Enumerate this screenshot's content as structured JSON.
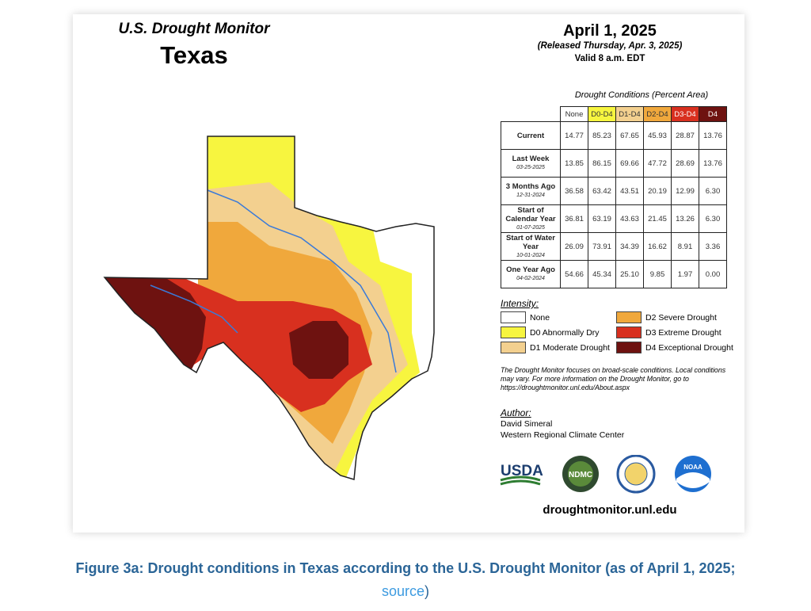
{
  "map": {
    "program_title": "U.S. Drought Monitor",
    "state": "Texas",
    "date": "April 1, 2025",
    "released": "(Released Thursday, Apr. 3, 2025)",
    "valid": "Valid 8 a.m. EDT",
    "colors": {
      "none": "#ffffff",
      "D0": "#f7f53f",
      "D1": "#f3d08f",
      "D2": "#f0a83c",
      "D3": "#d8301f",
      "D4": "#6e1210"
    }
  },
  "table": {
    "caption": "Drought Conditions (Percent Area)",
    "columns": [
      "None",
      "D0-D4",
      "D1-D4",
      "D2-D4",
      "D3-D4",
      "D4"
    ],
    "rows": [
      {
        "label": "Current",
        "date": "",
        "values": [
          "14.77",
          "85.23",
          "67.65",
          "45.93",
          "28.87",
          "13.76"
        ]
      },
      {
        "label": "Last Week",
        "date": "03-25-2025",
        "values": [
          "13.85",
          "86.15",
          "69.66",
          "47.72",
          "28.69",
          "13.76"
        ]
      },
      {
        "label": "3 Months Ago",
        "date": "12-31-2024",
        "values": [
          "36.58",
          "63.42",
          "43.51",
          "20.19",
          "12.99",
          "6.30"
        ]
      },
      {
        "label": "Start of Calendar Year",
        "date": "01-07-2025",
        "values": [
          "36.81",
          "63.19",
          "43.63",
          "21.45",
          "13.26",
          "6.30"
        ]
      },
      {
        "label": "Start of Water Year",
        "date": "10-01-2024",
        "values": [
          "26.09",
          "73.91",
          "34.39",
          "16.62",
          "8.91",
          "3.36"
        ]
      },
      {
        "label": "One Year Ago",
        "date": "04-02-2024",
        "values": [
          "54.66",
          "45.34",
          "25.10",
          "9.85",
          "1.97",
          "0.00"
        ]
      }
    ]
  },
  "legend": {
    "title": "Intensity:",
    "items": [
      {
        "label": "None",
        "color": "#ffffff"
      },
      {
        "label": "D2 Severe Drought",
        "color": "#f0a83c"
      },
      {
        "label": "D0 Abnormally Dry",
        "color": "#f7f53f"
      },
      {
        "label": "D3 Extreme Drought",
        "color": "#d8301f"
      },
      {
        "label": "D1 Moderate Drought",
        "color": "#f3d08f"
      },
      {
        "label": "D4 Exceptional Drought",
        "color": "#6e1210"
      }
    ]
  },
  "note": "The Drought Monitor focuses on broad-scale conditions. Local conditions may vary. For more information on the Drought Monitor, go to https://droughtmonitor.unl.edu/About.aspx",
  "author": {
    "title": "Author:",
    "name": "David Simeral",
    "org": "Western Regional Climate Center"
  },
  "logos": {
    "usda": "USDA",
    "ndmc": "NDMC",
    "noaa": "NOAA"
  },
  "site_url": "droughtmonitor.unl.edu",
  "caption": {
    "text": "Figure 3a: Drought conditions in Texas according to the U.S. Drought Monitor (as of April 1, 2025;",
    "link": "source",
    "close": ")"
  }
}
